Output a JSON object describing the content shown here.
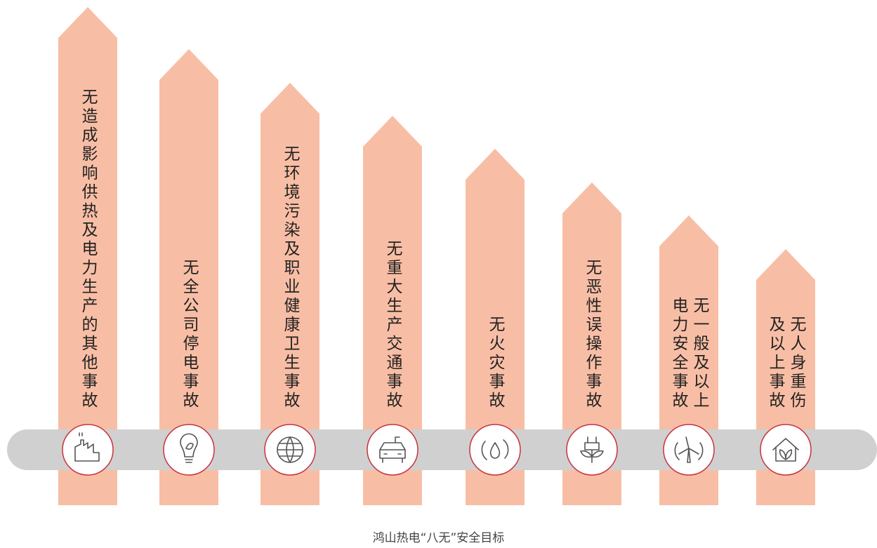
{
  "items": [
    {
      "lines": [
        "无造成影响供热及电力生产的其他事故"
      ]
    },
    {
      "lines": [
        "无全公司停电事故"
      ]
    },
    {
      "lines": [
        "无环境污染及职业健康卫生事故"
      ]
    },
    {
      "lines": [
        "无重大生产交通事故"
      ]
    },
    {
      "lines": [
        "无火灾事故"
      ]
    },
    {
      "lines": [
        "无恶性误操作事故"
      ]
    },
    {
      "lines": [
        "无一般及以上",
        "电力安全事故"
      ]
    },
    {
      "lines": [
        "无人身重伤",
        "及以上事故"
      ]
    }
  ],
  "caption": "鸿山热电“八无”安全目标"
}
